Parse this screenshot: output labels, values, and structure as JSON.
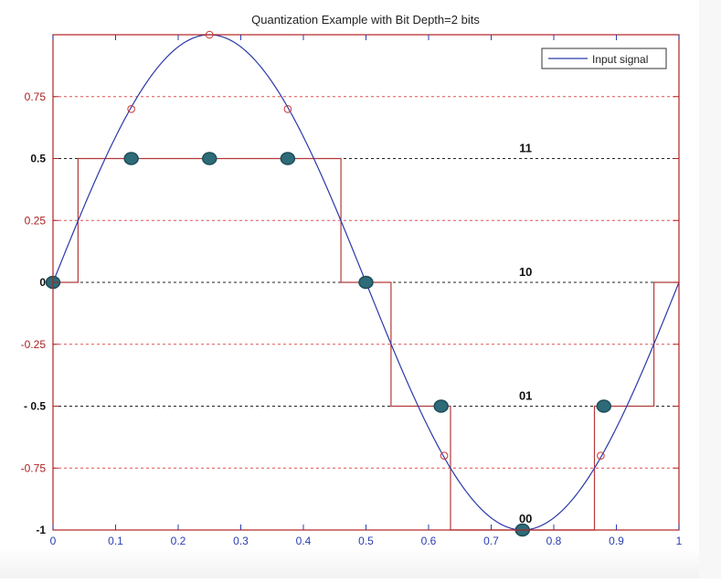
{
  "chart_data": {
    "type": "line",
    "title": "Quantization Example with Bit Depth=2 bits",
    "xlabel": "",
    "ylabel": "",
    "xlim": [
      0,
      1
    ],
    "ylim": [
      -1,
      1
    ],
    "x_ticks": [
      0,
      0.1,
      0.2,
      0.3,
      0.4,
      0.5,
      0.6,
      0.7,
      0.8,
      0.9,
      1
    ],
    "x_tick_labels": [
      "0",
      "0.1",
      "0.2",
      "0.3",
      "0.4",
      "0.5",
      "0.6",
      "0.7",
      "0.8",
      "0.9",
      "1"
    ],
    "y_ticks": [
      0.75,
      0.5,
      0.25,
      0,
      -0.25,
      -0.5,
      -0.75,
      -1
    ],
    "y_tick_labels": [
      "0.75",
      "0.5",
      "0.25",
      "0",
      "-0.25",
      "- 0.5",
      "-0.75",
      "-1"
    ],
    "legend": {
      "entries": [
        "Input signal"
      ],
      "placement": "top-right"
    },
    "grid": false,
    "input_signal": {
      "name": "Input signal",
      "function": "sin(2*pi*x)",
      "color": "#2b3aa8",
      "x_range": [
        0,
        1
      ]
    },
    "quantization_levels": [
      {
        "value": 0.5,
        "code": "11"
      },
      {
        "value": 0,
        "code": "10"
      },
      {
        "value": -0.5,
        "code": "01"
      },
      {
        "value": -1,
        "code": "00"
      }
    ],
    "decision_thresholds": [
      0.75,
      0.25,
      -0.25,
      -0.75
    ],
    "quantized_staircase": {
      "color": "#b23a3a",
      "points": [
        [
          0,
          0
        ],
        [
          0.04,
          0
        ],
        [
          0.04,
          0.5
        ],
        [
          0.46,
          0.5
        ],
        [
          0.46,
          0
        ],
        [
          0.54,
          0
        ],
        [
          0.54,
          -0.5
        ],
        [
          0.635,
          -0.5
        ],
        [
          0.635,
          -1
        ],
        [
          0.865,
          -1
        ],
        [
          0.865,
          -0.5
        ],
        [
          0.96,
          -0.5
        ],
        [
          0.96,
          0
        ],
        [
          1,
          0
        ]
      ]
    },
    "sample_points": [
      {
        "x": 0,
        "y": 0
      },
      {
        "x": 0.125,
        "y": 0.5
      },
      {
        "x": 0.25,
        "y": 0.5
      },
      {
        "x": 0.375,
        "y": 0.5
      },
      {
        "x": 0.5,
        "y": 0
      },
      {
        "x": 0.62,
        "y": -0.5
      },
      {
        "x": 0.75,
        "y": -1
      },
      {
        "x": 0.88,
        "y": -0.5
      }
    ],
    "original_samples": [
      {
        "x": 0.125,
        "y": 0.7
      },
      {
        "x": 0.25,
        "y": 1
      },
      {
        "x": 0.375,
        "y": 0.7
      },
      {
        "x": 0.625,
        "y": -0.7
      },
      {
        "x": 0.875,
        "y": -0.7
      }
    ],
    "colors": {
      "axes": "#b22222",
      "threshold_line": "#e05050",
      "level_line": "#222222",
      "sample_dot": "#2e6b78",
      "sample_dot_edge": "#1d4e59",
      "original_marker": "#cc3333",
      "tick_label_y": "#aa2222",
      "tick_label_x": "#2a3db0"
    }
  }
}
